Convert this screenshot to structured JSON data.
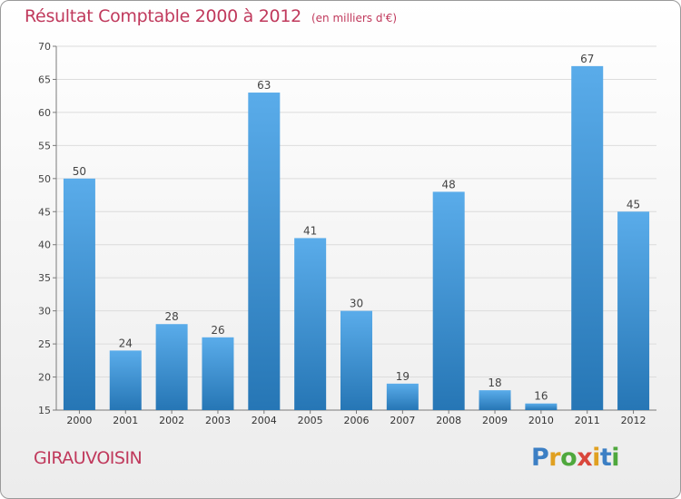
{
  "header": {
    "title": "Résultat Comptable 2000 à 2012",
    "unit": "(en milliers d'€)"
  },
  "footer": {
    "commune": "GIRAUVOISIN",
    "logo_letters": [
      "P",
      "r",
      "o",
      "x",
      "i",
      "t",
      "i"
    ],
    "logo_colors": [
      "#3c7fc4",
      "#e0a021",
      "#4fa83d",
      "#d9463b",
      "#e0a021",
      "#3c7fc4",
      "#4fa83d"
    ]
  },
  "colors": {
    "title": "#c0395c",
    "bar_light": "#5aacea",
    "bar_dark": "#2676b5",
    "grid": "#dcdcdc",
    "axis": "#7a7a7a"
  },
  "chart_data": {
    "type": "bar",
    "title": "Résultat Comptable 2000 à 2012",
    "categories": [
      "2000",
      "2001",
      "2002",
      "2003",
      "2004",
      "2005",
      "2006",
      "2007",
      "2008",
      "2009",
      "2010",
      "2011",
      "2012"
    ],
    "values": [
      50,
      24,
      28,
      26,
      63,
      41,
      30,
      19,
      48,
      18,
      16,
      67,
      45
    ],
    "yticks": [
      15,
      20,
      25,
      30,
      35,
      40,
      45,
      50,
      55,
      60,
      65,
      70
    ],
    "ylim": [
      15,
      70
    ],
    "grid": true,
    "xlabel": "",
    "ylabel": ""
  }
}
